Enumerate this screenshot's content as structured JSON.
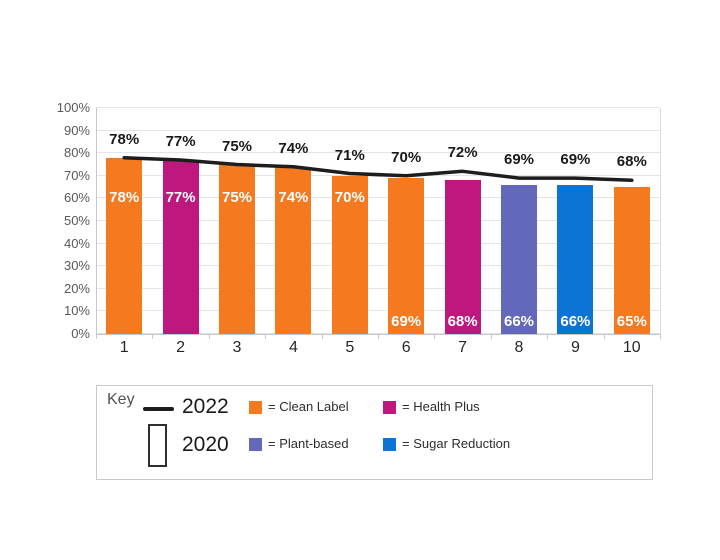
{
  "chart_data": {
    "type": "bar",
    "categories": [
      "1",
      "2",
      "3",
      "4",
      "5",
      "6",
      "7",
      "8",
      "9",
      "10"
    ],
    "series": [
      {
        "name": "2020",
        "type": "bar",
        "values": [
          78,
          77,
          75,
          74,
          70,
          69,
          68,
          66,
          66,
          65
        ],
        "brands": [
          "Clean Label",
          "Health Plus",
          "Clean Label",
          "Clean Label",
          "Clean Label",
          "Clean Label",
          "Health Plus",
          "Plant-based",
          "Sugar Reduction",
          "Clean Label"
        ],
        "value_labels_inside": [
          "78%",
          "77%",
          "75%",
          "74%",
          "70%",
          "69%",
          "68%",
          "66%",
          "66%",
          "65%"
        ]
      },
      {
        "name": "2022",
        "type": "line",
        "values": [
          78,
          77,
          75,
          74,
          71,
          70,
          72,
          69,
          69,
          68
        ],
        "value_labels_above": [
          "78%",
          "77%",
          "75%",
          "74%",
          "71%",
          "70%",
          "72%",
          "69%",
          "69%",
          "68%"
        ]
      }
    ],
    "ylim": [
      0,
      100
    ],
    "ytick_labels": [
      "0%",
      "10%",
      "20%",
      "30%",
      "40%",
      "50%",
      "60%",
      "70%",
      "80%",
      "90%",
      "100%"
    ],
    "grid": "horizontal",
    "legend_position": "boxed key below chart"
  },
  "colors": {
    "clean_label": "#F5791E",
    "health_plus": "#BE187E",
    "plant_based": "#6468BA",
    "sugar_reduction": "#0B74D4",
    "line_2022": "#1D1D1D",
    "gridline": "#E4E4E6",
    "axis": "#C6C7C9",
    "ytick_text": "#58585A",
    "xtick_text": "#262626"
  },
  "key": {
    "title": "Key",
    "line_label": "2022",
    "bar_label": "2020",
    "items": [
      {
        "label": "= Clean Label",
        "color": "#F5791E"
      },
      {
        "label": "= Health Plus",
        "color": "#BE187E"
      },
      {
        "label": "= Plant-based",
        "color": "#6468BA"
      },
      {
        "label": "= Sugar Reduction",
        "color": "#0B74D4"
      }
    ]
  }
}
